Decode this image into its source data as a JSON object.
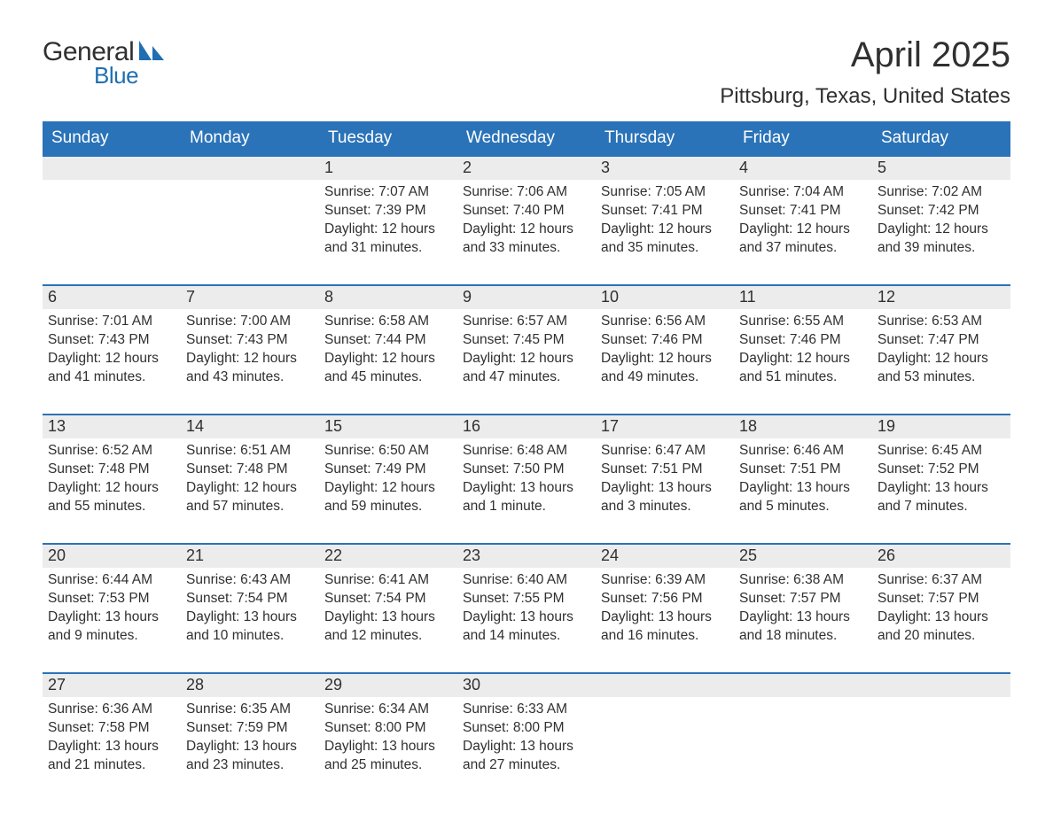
{
  "logo": {
    "text1": "General",
    "text2": "Blue",
    "sail_color": "#1f6fb2"
  },
  "title": "April 2025",
  "location": "Pittsburg, Texas, United States",
  "header_bg": "#2a73b8",
  "header_fg": "#ffffff",
  "daynum_bg": "#ececec",
  "weekdays": [
    "Sunday",
    "Monday",
    "Tuesday",
    "Wednesday",
    "Thursday",
    "Friday",
    "Saturday"
  ],
  "weeks": [
    [
      null,
      null,
      {
        "n": "1",
        "sr": "Sunrise: 7:07 AM",
        "ss": "Sunset: 7:39 PM",
        "dl": "Daylight: 12 hours and 31 minutes."
      },
      {
        "n": "2",
        "sr": "Sunrise: 7:06 AM",
        "ss": "Sunset: 7:40 PM",
        "dl": "Daylight: 12 hours and 33 minutes."
      },
      {
        "n": "3",
        "sr": "Sunrise: 7:05 AM",
        "ss": "Sunset: 7:41 PM",
        "dl": "Daylight: 12 hours and 35 minutes."
      },
      {
        "n": "4",
        "sr": "Sunrise: 7:04 AM",
        "ss": "Sunset: 7:41 PM",
        "dl": "Daylight: 12 hours and 37 minutes."
      },
      {
        "n": "5",
        "sr": "Sunrise: 7:02 AM",
        "ss": "Sunset: 7:42 PM",
        "dl": "Daylight: 12 hours and 39 minutes."
      }
    ],
    [
      {
        "n": "6",
        "sr": "Sunrise: 7:01 AM",
        "ss": "Sunset: 7:43 PM",
        "dl": "Daylight: 12 hours and 41 minutes."
      },
      {
        "n": "7",
        "sr": "Sunrise: 7:00 AM",
        "ss": "Sunset: 7:43 PM",
        "dl": "Daylight: 12 hours and 43 minutes."
      },
      {
        "n": "8",
        "sr": "Sunrise: 6:58 AM",
        "ss": "Sunset: 7:44 PM",
        "dl": "Daylight: 12 hours and 45 minutes."
      },
      {
        "n": "9",
        "sr": "Sunrise: 6:57 AM",
        "ss": "Sunset: 7:45 PM",
        "dl": "Daylight: 12 hours and 47 minutes."
      },
      {
        "n": "10",
        "sr": "Sunrise: 6:56 AM",
        "ss": "Sunset: 7:46 PM",
        "dl": "Daylight: 12 hours and 49 minutes."
      },
      {
        "n": "11",
        "sr": "Sunrise: 6:55 AM",
        "ss": "Sunset: 7:46 PM",
        "dl": "Daylight: 12 hours and 51 minutes."
      },
      {
        "n": "12",
        "sr": "Sunrise: 6:53 AM",
        "ss": "Sunset: 7:47 PM",
        "dl": "Daylight: 12 hours and 53 minutes."
      }
    ],
    [
      {
        "n": "13",
        "sr": "Sunrise: 6:52 AM",
        "ss": "Sunset: 7:48 PM",
        "dl": "Daylight: 12 hours and 55 minutes."
      },
      {
        "n": "14",
        "sr": "Sunrise: 6:51 AM",
        "ss": "Sunset: 7:48 PM",
        "dl": "Daylight: 12 hours and 57 minutes."
      },
      {
        "n": "15",
        "sr": "Sunrise: 6:50 AM",
        "ss": "Sunset: 7:49 PM",
        "dl": "Daylight: 12 hours and 59 minutes."
      },
      {
        "n": "16",
        "sr": "Sunrise: 6:48 AM",
        "ss": "Sunset: 7:50 PM",
        "dl": "Daylight: 13 hours and 1 minute."
      },
      {
        "n": "17",
        "sr": "Sunrise: 6:47 AM",
        "ss": "Sunset: 7:51 PM",
        "dl": "Daylight: 13 hours and 3 minutes."
      },
      {
        "n": "18",
        "sr": "Sunrise: 6:46 AM",
        "ss": "Sunset: 7:51 PM",
        "dl": "Daylight: 13 hours and 5 minutes."
      },
      {
        "n": "19",
        "sr": "Sunrise: 6:45 AM",
        "ss": "Sunset: 7:52 PM",
        "dl": "Daylight: 13 hours and 7 minutes."
      }
    ],
    [
      {
        "n": "20",
        "sr": "Sunrise: 6:44 AM",
        "ss": "Sunset: 7:53 PM",
        "dl": "Daylight: 13 hours and 9 minutes."
      },
      {
        "n": "21",
        "sr": "Sunrise: 6:43 AM",
        "ss": "Sunset: 7:54 PM",
        "dl": "Daylight: 13 hours and 10 minutes."
      },
      {
        "n": "22",
        "sr": "Sunrise: 6:41 AM",
        "ss": "Sunset: 7:54 PM",
        "dl": "Daylight: 13 hours and 12 minutes."
      },
      {
        "n": "23",
        "sr": "Sunrise: 6:40 AM",
        "ss": "Sunset: 7:55 PM",
        "dl": "Daylight: 13 hours and 14 minutes."
      },
      {
        "n": "24",
        "sr": "Sunrise: 6:39 AM",
        "ss": "Sunset: 7:56 PM",
        "dl": "Daylight: 13 hours and 16 minutes."
      },
      {
        "n": "25",
        "sr": "Sunrise: 6:38 AM",
        "ss": "Sunset: 7:57 PM",
        "dl": "Daylight: 13 hours and 18 minutes."
      },
      {
        "n": "26",
        "sr": "Sunrise: 6:37 AM",
        "ss": "Sunset: 7:57 PM",
        "dl": "Daylight: 13 hours and 20 minutes."
      }
    ],
    [
      {
        "n": "27",
        "sr": "Sunrise: 6:36 AM",
        "ss": "Sunset: 7:58 PM",
        "dl": "Daylight: 13 hours and 21 minutes."
      },
      {
        "n": "28",
        "sr": "Sunrise: 6:35 AM",
        "ss": "Sunset: 7:59 PM",
        "dl": "Daylight: 13 hours and 23 minutes."
      },
      {
        "n": "29",
        "sr": "Sunrise: 6:34 AM",
        "ss": "Sunset: 8:00 PM",
        "dl": "Daylight: 13 hours and 25 minutes."
      },
      {
        "n": "30",
        "sr": "Sunrise: 6:33 AM",
        "ss": "Sunset: 8:00 PM",
        "dl": "Daylight: 13 hours and 27 minutes."
      },
      null,
      null,
      null
    ]
  ]
}
